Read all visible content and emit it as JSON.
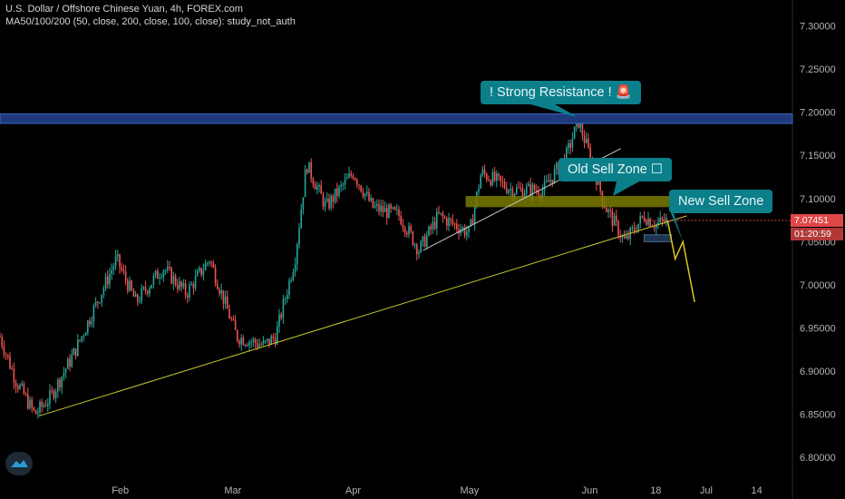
{
  "header": {
    "title": "U.S. Dollar / Offshore Chinese Yuan, 4h, FOREX.com",
    "indicator": "MA50/100/200 (50, close, 200, close, 100, close): study_not_auth"
  },
  "annotations": {
    "strong_resistance": "! Strong Resistance ! 🚨",
    "old_sell_zone": "Old Sell Zone ☐",
    "new_sell_zone": "New Sell Zone"
  },
  "price_tags": {
    "last_price": "7.07451",
    "countdown": "01:20:59"
  },
  "colors": {
    "background": "#000000",
    "candle_up": "#26a69a",
    "candle_down": "#ef5350",
    "trendline": "#c8c832",
    "resistance_band": "#1f3a7a",
    "sell_zone": "#7a7a00",
    "callout": "#0b7f8a",
    "last_price_tag": "#e04848"
  },
  "chart_data": {
    "type": "candlestick",
    "y_ticks": [
      "7.30000",
      "7.25000",
      "7.20000",
      "7.15000",
      "7.10000",
      "7.05000",
      "7.00000",
      "6.95000",
      "6.90000",
      "6.85000",
      "6.80000"
    ],
    "x_ticks": [
      "Feb",
      "Mar",
      "Apr",
      "May",
      "Jun",
      "18",
      "Jul",
      "14"
    ],
    "ylim": [
      6.775,
      7.33
    ],
    "price_path": [
      [
        "2020-01-01",
        6.94
      ],
      [
        "2020-01-05",
        6.89
      ],
      [
        "2020-01-10",
        6.85
      ],
      [
        "2020-01-14",
        6.87
      ],
      [
        "2020-01-20",
        6.92
      ],
      [
        "2020-01-26",
        6.98
      ],
      [
        "2020-01-31",
        7.03
      ],
      [
        "2020-02-05",
        6.98
      ],
      [
        "2020-02-12",
        7.02
      ],
      [
        "2020-02-18",
        6.99
      ],
      [
        "2020-02-24",
        7.03
      ],
      [
        "2020-03-02",
        6.94
      ],
      [
        "2020-03-09",
        6.93
      ],
      [
        "2020-03-12",
        6.94
      ],
      [
        "2020-03-17",
        7.03
      ],
      [
        "2020-03-20",
        7.14
      ],
      [
        "2020-03-25",
        7.09
      ],
      [
        "2020-04-01",
        7.13
      ],
      [
        "2020-04-06",
        7.09
      ],
      [
        "2020-04-13",
        7.08
      ],
      [
        "2020-04-18",
        7.04
      ],
      [
        "2020-04-23",
        7.08
      ],
      [
        "2020-05-01",
        7.06
      ],
      [
        "2020-05-04",
        7.13
      ],
      [
        "2020-05-12",
        7.11
      ],
      [
        "2020-05-20",
        7.11
      ],
      [
        "2020-05-26",
        7.15
      ],
      [
        "2020-05-29",
        7.19
      ],
      [
        "2020-06-01",
        7.15
      ],
      [
        "2020-06-05",
        7.09
      ],
      [
        "2020-06-10",
        7.05
      ],
      [
        "2020-06-15",
        7.08
      ],
      [
        "2020-06-18",
        7.07
      ],
      [
        "2020-06-21",
        7.075
      ]
    ],
    "projection": [
      [
        "2020-06-21",
        7.075
      ],
      [
        "2020-06-23",
        7.03
      ],
      [
        "2020-06-25",
        7.05
      ],
      [
        "2020-06-28",
        6.98
      ]
    ],
    "resistance_band": [
      7.187,
      7.198
    ],
    "old_sell_zone": {
      "from": "2020-04-30",
      "to": "2020-06-24",
      "low": 7.09,
      "high": 7.103
    },
    "new_sell_zone": {
      "from": "2020-06-15",
      "to": "2020-06-22",
      "low": 7.05,
      "high": 7.058
    },
    "trendlines": [
      {
        "from": [
          "2020-01-11",
          6.848
        ],
        "to": [
          "2020-06-26",
          7.08
        ]
      },
      {
        "from": [
          "2020-04-19",
          7.04
        ],
        "to": [
          "2020-06-09",
          7.158
        ]
      }
    ],
    "last_price": 7.07451
  }
}
